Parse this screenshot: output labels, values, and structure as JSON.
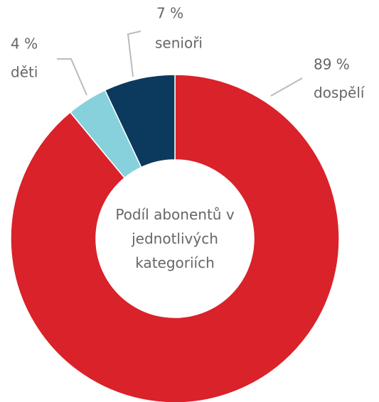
{
  "chart_data": {
    "type": "donut",
    "title": "Podíl abonentů v jednotlivých kategoriích",
    "categories": [
      "dospělí",
      "děti",
      "senioři"
    ],
    "values": [
      89,
      4,
      7
    ],
    "value_labels": [
      "89 %",
      "4 %",
      "7 %"
    ],
    "colors": [
      "#d9222a",
      "#87d1dc",
      "#0b3a5e"
    ]
  }
}
